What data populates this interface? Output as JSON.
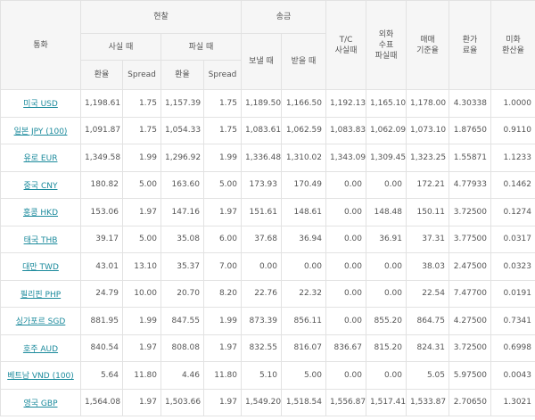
{
  "header": {
    "currency": "통화",
    "cash": "현찰",
    "cash_buy": "사실 때",
    "cash_sell": "파실 때",
    "rate1": "환율",
    "spread1": "Spread",
    "rate2": "환율",
    "spread2": "Spread",
    "remit": "송금",
    "remit_send": "보낼 때",
    "remit_receive": "받을 때",
    "tc_buy": "T/C\n사실때",
    "check_sell": "외화\n수표\n파실때",
    "base_rate": "매매\n기준율",
    "conversion_fee": "환가\n료율",
    "usd_rate": "미화\n환산율"
  },
  "table": {
    "rows": [
      [
        "미국 USD",
        "1,198.61",
        "1.75",
        "1,157.39",
        "1.75",
        "1,189.50",
        "1,166.50",
        "1,192.13",
        "1,165.10",
        "1,178.00",
        "4.30338",
        "1.0000"
      ],
      [
        "일본 JPY (100)",
        "1,091.87",
        "1.75",
        "1,054.33",
        "1.75",
        "1,083.61",
        "1,062.59",
        "1,083.83",
        "1,062.09",
        "1,073.10",
        "1.87650",
        "0.9110"
      ],
      [
        "유로 EUR",
        "1,349.58",
        "1.99",
        "1,296.92",
        "1.99",
        "1,336.48",
        "1,310.02",
        "1,343.09",
        "1,309.45",
        "1,323.25",
        "1.55871",
        "1.1233"
      ],
      [
        "중국 CNY",
        "180.82",
        "5.00",
        "163.60",
        "5.00",
        "173.93",
        "170.49",
        "0.00",
        "0.00",
        "172.21",
        "4.77933",
        "0.1462"
      ],
      [
        "홍콩 HKD",
        "153.06",
        "1.97",
        "147.16",
        "1.97",
        "151.61",
        "148.61",
        "0.00",
        "148.48",
        "150.11",
        "3.72500",
        "0.1274"
      ],
      [
        "태국 THB",
        "39.17",
        "5.00",
        "35.08",
        "6.00",
        "37.68",
        "36.94",
        "0.00",
        "36.91",
        "37.31",
        "3.77500",
        "0.0317"
      ],
      [
        "대만 TWD",
        "43.01",
        "13.10",
        "35.37",
        "7.00",
        "0.00",
        "0.00",
        "0.00",
        "0.00",
        "38.03",
        "2.47500",
        "0.0323"
      ],
      [
        "필리핀 PHP",
        "24.79",
        "10.00",
        "20.70",
        "8.20",
        "22.76",
        "22.32",
        "0.00",
        "0.00",
        "22.54",
        "7.47700",
        "0.0191"
      ],
      [
        "싱가포르 SGD",
        "881.95",
        "1.99",
        "847.55",
        "1.99",
        "873.39",
        "856.11",
        "0.00",
        "855.20",
        "864.75",
        "4.27500",
        "0.7341"
      ],
      [
        "호주 AUD",
        "840.54",
        "1.97",
        "808.08",
        "1.97",
        "832.55",
        "816.07",
        "836.67",
        "815.20",
        "824.31",
        "3.72500",
        "0.6998"
      ],
      [
        "베트남 VND (100)",
        "5.64",
        "11.80",
        "4.46",
        "11.80",
        "5.10",
        "5.00",
        "0.00",
        "0.00",
        "5.05",
        "5.97500",
        "0.0043"
      ],
      [
        "영국 GBP",
        "1,564.08",
        "1.97",
        "1,503.66",
        "1.97",
        "1,549.20",
        "1,518.54",
        "1,556.87",
        "1,517.41",
        "1,533.87",
        "2.70650",
        "1.3021"
      ]
    ]
  }
}
